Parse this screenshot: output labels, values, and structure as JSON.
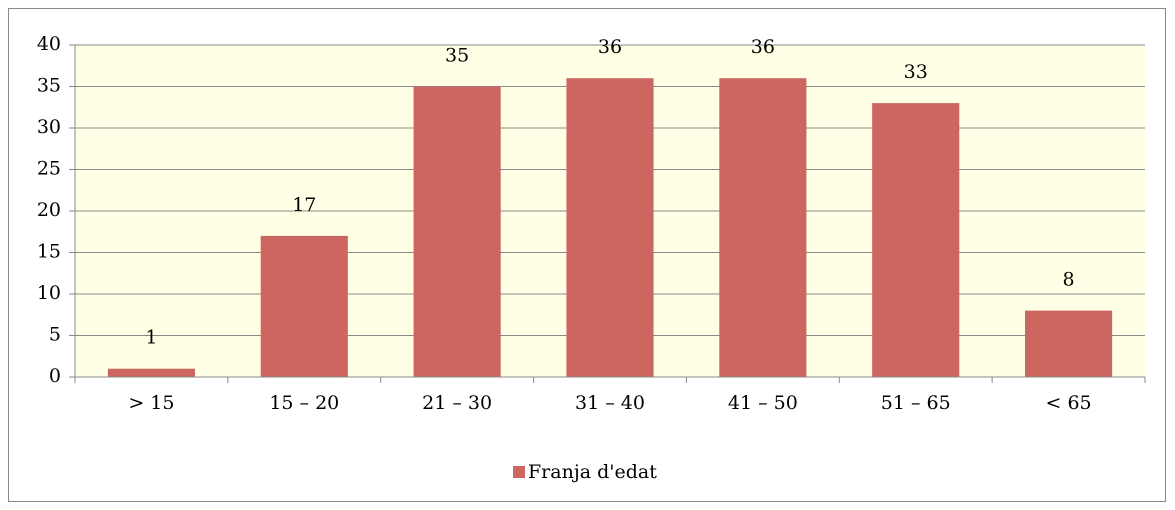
{
  "chart_data": {
    "type": "bar",
    "categories": [
      "> 15",
      "15 – 20",
      "21 – 30",
      "31 – 40",
      "41 – 50",
      "51 – 65",
      "< 65"
    ],
    "series": [
      {
        "name": "Franja d'edat",
        "color": "#cd6660",
        "values": [
          1,
          17,
          35,
          36,
          36,
          33,
          8
        ]
      }
    ],
    "ylim": [
      0,
      40
    ],
    "yticks": [
      0,
      5,
      10,
      15,
      20,
      25,
      30,
      35,
      40
    ],
    "grid": true,
    "legend": "bottom"
  }
}
